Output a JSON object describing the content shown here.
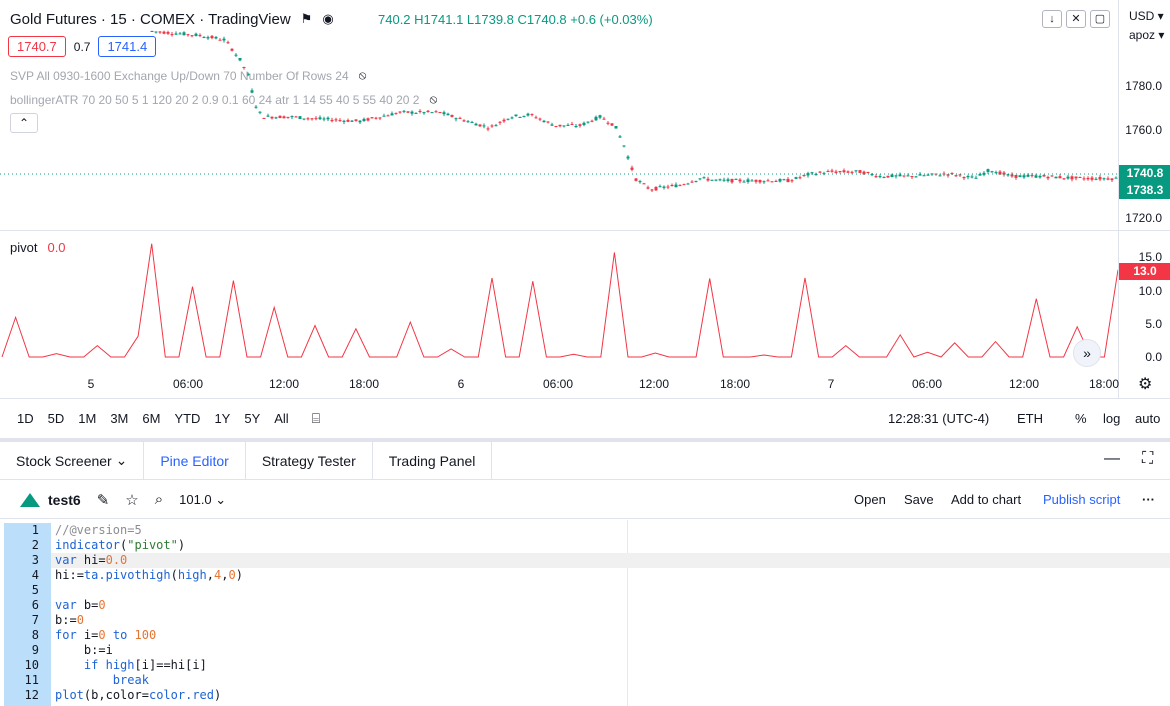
{
  "header": {
    "symbol_title": "Gold Futures · 15 · COMEX · TradingView",
    "ohlc": "740.2  H1741.1  L1739.8  C1740.8  +0.6 (+0.03%)",
    "bid": "1740.7",
    "spread": "0.7",
    "ask": "1741.4",
    "currency": "USD",
    "unit": "apoz"
  },
  "indicators": [
    "SVP All 0930-1600 Exchange Up/Down 70 Number Of Rows 24",
    "bollingerATR 70 20 50 5 1 120 20 2 0.9 0.1 60 24 atr 1 14 55 40 5 55 40 20 2"
  ],
  "price_scale": {
    "labels": [
      "1780.0",
      "1760.0",
      "1720.0"
    ],
    "last_price": "1740.8",
    "bid_price": "1738.3"
  },
  "pivot_pane": {
    "name": "pivot",
    "value": "0.0",
    "scale_labels": [
      "15.0",
      "10.0",
      "5.0",
      "0.0"
    ],
    "last_value": "13.0"
  },
  "chart_data": {
    "type": "line",
    "title": "pivot",
    "series": [
      {
        "name": "pivot",
        "color": "#f23645",
        "values": [
          0,
          5.9,
          0,
          0,
          0.5,
          0,
          0,
          1.7,
          0,
          0,
          3.1,
          16.9,
          0,
          0,
          10.5,
          0,
          0,
          11.4,
          0,
          0,
          7.4,
          0,
          0,
          4.7,
          0,
          0,
          4.2,
          0,
          0,
          0,
          5.2,
          0,
          0,
          1.2,
          0,
          0,
          11.8,
          0,
          0,
          11.3,
          0,
          0,
          0.4,
          0,
          0,
          15.6,
          0,
          0,
          0.6,
          0,
          0,
          0,
          11.7,
          0,
          0,
          0,
          0.3,
          0,
          0,
          11.8,
          0,
          0,
          1.7,
          0,
          0,
          0,
          3.3,
          0,
          0.7,
          0,
          2.1,
          0,
          0,
          2.3,
          0,
          0,
          8.7,
          0,
          0,
          4.5,
          0,
          0,
          13
        ]
      }
    ],
    "ylim": [
      0,
      17
    ]
  },
  "time_axis": [
    "5",
    "06:00",
    "12:00",
    "18:00",
    "6",
    "06:00",
    "12:00",
    "18:00",
    "7",
    "06:00",
    "12:00",
    "18:00"
  ],
  "range_bar": {
    "ranges": [
      "1D",
      "5D",
      "1M",
      "3M",
      "6M",
      "YTD",
      "1Y",
      "5Y",
      "All"
    ],
    "clock": "12:28:31 (UTC-4)",
    "session": "ETH",
    "pct": "%",
    "log": "log",
    "auto": "auto"
  },
  "panel": {
    "tabs": [
      "Stock Screener",
      "Pine Editor",
      "Strategy Tester",
      "Trading Panel"
    ],
    "active_tab": "Pine Editor"
  },
  "editor": {
    "script_name": "test6",
    "version": "101.0",
    "actions": [
      "Open",
      "Save",
      "Add to chart",
      "Publish script"
    ]
  },
  "code_lines": [
    "//@version=5",
    "indicator(\"pivot\")",
    "var hi=0.0",
    "hi:=ta.pivothigh(high,4,0)",
    "",
    "var b=0",
    "b:=0",
    "for i=0 to 100",
    "    b:=i",
    "    if high[i]==hi[i]",
    "        break",
    "plot(b,color=color.red)"
  ],
  "colors": {
    "up": "#089981",
    "down": "#f23645",
    "accent": "#2962ff"
  }
}
